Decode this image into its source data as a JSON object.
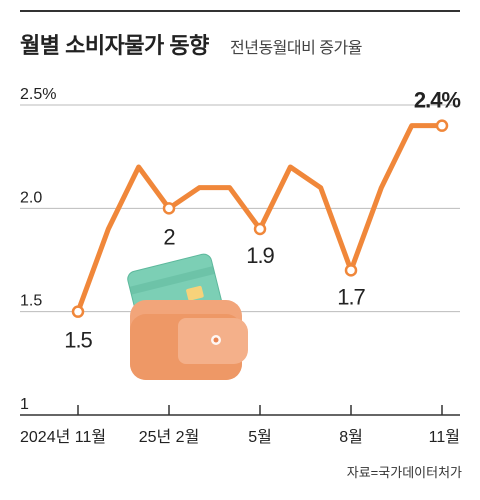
{
  "header": {
    "title": "월별 소비자물가 동향",
    "subtitle": "전년동월대비 증가율"
  },
  "source": "자료=국가데이터처가",
  "colors": {
    "line": "#F0873A",
    "axis": "#333333",
    "grid": "#BBBBBB",
    "text": "#222222"
  },
  "chart_data": {
    "type": "line",
    "title": "월별 소비자물가 동향",
    "subtitle": "전년동월대비 증가율",
    "xlabel": "",
    "ylabel": "",
    "ylim": [
      1,
      2.5
    ],
    "yticks": [
      1,
      1.5,
      2.0,
      2.5
    ],
    "ytick_labels": [
      "1",
      "1.5",
      "2.0",
      "2.5%"
    ],
    "grid": true,
    "x_tick_positions": [
      0,
      3,
      6,
      9,
      12
    ],
    "x_tick_labels": [
      "2024년 11월",
      "25년 2월",
      "5월",
      "8월",
      "11월"
    ],
    "x": [
      "2024-11",
      "2024-12",
      "2025-01",
      "2025-02",
      "2025-03",
      "2025-04",
      "2025-05",
      "2025-06",
      "2025-07",
      "2025-08",
      "2025-09",
      "2025-10",
      "2025-11"
    ],
    "values": [
      1.5,
      1.9,
      2.2,
      2.0,
      2.1,
      2.1,
      1.9,
      2.2,
      2.1,
      1.7,
      2.1,
      2.4,
      2.4
    ],
    "annotations": [
      {
        "index": 0,
        "label": "1.5"
      },
      {
        "index": 3,
        "label": "2"
      },
      {
        "index": 6,
        "label": "1.9"
      },
      {
        "index": 9,
        "label": "1.7"
      },
      {
        "index": 12,
        "label": "2.4%"
      }
    ]
  },
  "illustration": {
    "name": "wallet-with-card-icon"
  }
}
